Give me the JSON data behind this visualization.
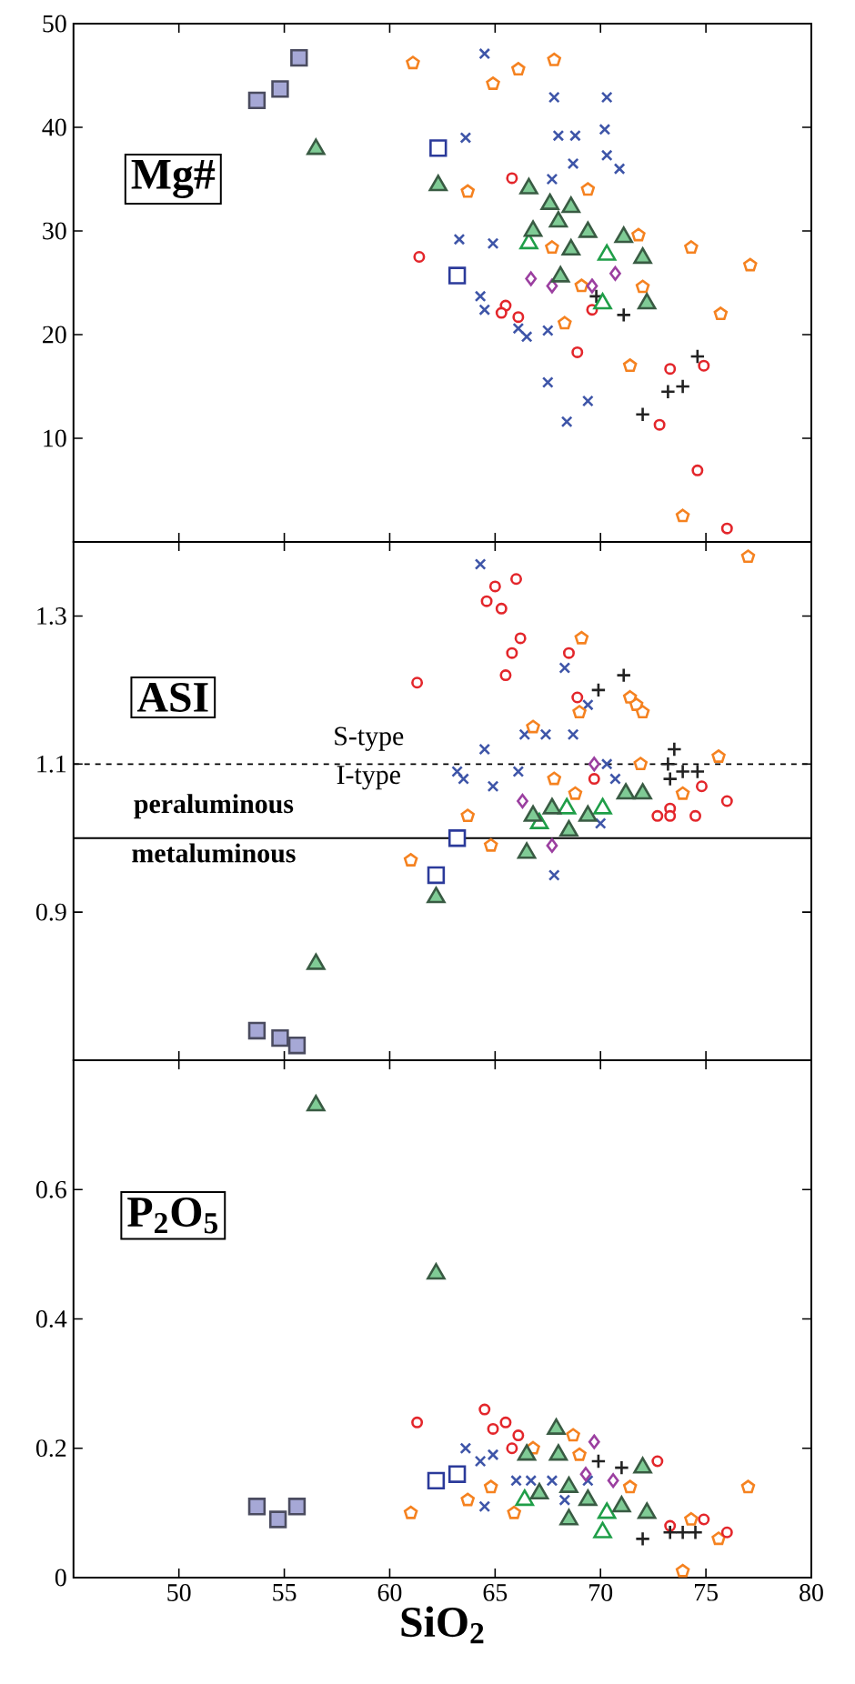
{
  "chart_data": [
    {
      "type": "scatter",
      "ylabel": "Mg#",
      "xlim": [
        45,
        80
      ],
      "ylim": [
        0,
        50
      ],
      "xticks": [
        50,
        55,
        60,
        65,
        70,
        75,
        80
      ],
      "yticks": [
        10,
        20,
        30,
        40,
        50
      ],
      "tick_labels": "y",
      "series": [
        {
          "marker": "square",
          "color": "#a6a8d6",
          "x": [
            53.7,
            54.8,
            55.7
          ],
          "values": [
            42.6,
            43.7,
            46.7
          ]
        },
        {
          "marker": "square",
          "color": "#2b3a9a",
          "x": [
            62.3,
            63.2
          ],
          "values": [
            38.0,
            25.7
          ]
        },
        {
          "marker": "cross",
          "color": "#3e55a8",
          "x": [
            64.5,
            67.8,
            70.3,
            63.6,
            68.0,
            68.8,
            70.2,
            68.7,
            70.3,
            70.9,
            67.7,
            63.3,
            64.9,
            64.3,
            64.5,
            66.1,
            66.5,
            67.5,
            67.5,
            69.4,
            68.4
          ],
          "values": [
            47.1,
            42.9,
            42.9,
            39.0,
            39.2,
            39.2,
            39.8,
            36.5,
            37.3,
            36.0,
            35.0,
            29.2,
            28.8,
            23.7,
            22.4,
            20.6,
            19.8,
            20.4,
            15.4,
            13.6,
            11.6
          ]
        },
        {
          "color": "#f58220",
          "x": [
            61.1,
            66.1,
            67.8,
            64.9,
            63.7,
            69.4,
            71.8,
            74.3,
            77.1,
            67.7,
            72.0,
            68.3,
            75.7,
            71.4,
            73.9,
            69.1
          ],
          "values": [
            46.2,
            45.6,
            46.5,
            44.2,
            33.8,
            34.0,
            29.6,
            28.4,
            26.7,
            28.4,
            24.6,
            21.1,
            22.0,
            17.0,
            2.5,
            24.7
          ]
        },
        {
          "marker": "circle",
          "color": "#e3262b",
          "x": [
            61.4,
            65.8,
            65.5,
            65.3,
            66.1,
            68.9,
            73.3,
            74.9,
            72.8,
            74.6,
            76.0,
            69.6
          ],
          "values": [
            27.5,
            35.1,
            22.8,
            22.1,
            21.7,
            18.3,
            16.7,
            17.0,
            11.3,
            6.9,
            1.3,
            22.4
          ]
        },
        {
          "marker": "diamond",
          "color": "#9b3fa0",
          "x": [
            66.7,
            68.3,
            70.7,
            69.6,
            67.7
          ],
          "values": [
            25.4,
            null,
            25.9,
            24.7,
            24.7
          ]
        },
        {
          "marker": "plus",
          "color": "#222222",
          "x": [
            69.8,
            71.1,
            72.0,
            73.2,
            73.9,
            74.6
          ],
          "values": [
            23.7,
            21.9,
            12.3,
            14.5,
            15.0,
            17.9
          ]
        },
        {
          "marker": "triangle",
          "color": "#1f9e48",
          "x": [
            66.6,
            67.6,
            70.3,
            70.1
          ],
          "values": [
            28.8,
            null,
            27.7,
            23.0
          ]
        },
        {
          "marker": "triangle",
          "color": "#7fcb95",
          "x": [
            56.5,
            62.3,
            66.6,
            67.6,
            68.6,
            68.0,
            69.4,
            66.8,
            71.1,
            68.6,
            72.0,
            68.1,
            72.2
          ],
          "values": [
            37.9,
            34.4,
            34.1,
            32.6,
            32.3,
            30.9,
            29.9,
            30.0,
            29.4,
            28.2,
            27.4,
            25.6,
            23.0
          ]
        }
      ]
    },
    {
      "type": "scatter",
      "ylabel": "ASI",
      "xlim": [
        45,
        80
      ],
      "ylim": [
        0.7,
        1.4
      ],
      "xticks": [
        50,
        55,
        60,
        65,
        70,
        75,
        80
      ],
      "yticks": [
        0.9,
        1.1,
        1.3
      ],
      "tick_labels": "y",
      "ref_lines": [
        {
          "axis": "y",
          "value": 1.1,
          "line_style": "dashed",
          "color": "#000000"
        },
        {
          "axis": "y",
          "value": 1.0,
          "color": "#000000"
        }
      ],
      "annotations": [
        "S-type",
        "I-type",
        "**peraluminous**",
        "**metaluminous**"
      ],
      "series": [
        {
          "marker": "square",
          "color": "#a6a8d6",
          "x": [
            53.7,
            54.8,
            55.6
          ],
          "values": [
            0.74,
            0.73,
            0.72
          ]
        },
        {
          "marker": "square",
          "color": "#2b3a9a",
          "x": [
            63.2,
            62.2
          ],
          "values": [
            1.0,
            0.95
          ]
        },
        {
          "marker": "cross",
          "color": "#3e55a8",
          "x": [
            64.3,
            68.3,
            69.4,
            66.4,
            67.4,
            68.7,
            64.5,
            63.2,
            63.5,
            64.9,
            66.1,
            70.3,
            70.7,
            67.8,
            70.0
          ],
          "values": [
            1.37,
            1.23,
            1.18,
            1.14,
            1.14,
            1.14,
            1.12,
            1.09,
            1.08,
            1.07,
            1.09,
            1.1,
            1.08,
            0.95,
            1.02
          ]
        },
        {
          "color": "#f58220",
          "x": [
            77.0,
            69.1,
            69.0,
            71.4,
            71.7,
            72.0,
            66.8,
            75.6,
            71.9,
            67.8,
            73.9,
            63.7,
            64.8,
            61.0,
            68.8
          ],
          "values": [
            1.38,
            1.27,
            1.17,
            1.19,
            1.18,
            1.17,
            1.15,
            1.11,
            1.1,
            1.08,
            1.06,
            1.03,
            0.99,
            0.97,
            1.06
          ]
        },
        {
          "marker": "circle",
          "color": "#e3262b",
          "x": [
            65.0,
            66.0,
            64.6,
            65.3,
            66.2,
            65.8,
            65.5,
            68.5,
            61.3,
            68.9,
            69.7,
            74.8,
            76.0,
            73.3,
            73.3,
            74.5,
            72.7
          ],
          "values": [
            1.34,
            1.35,
            1.32,
            1.31,
            1.27,
            1.25,
            1.22,
            1.25,
            1.21,
            1.19,
            1.08,
            1.07,
            1.05,
            1.04,
            1.03,
            1.03,
            1.03
          ]
        },
        {
          "marker": "diamond",
          "color": "#9b3fa0",
          "x": [
            69.7,
            67.7,
            66.3
          ],
          "values": [
            1.1,
            0.99,
            1.05
          ]
        },
        {
          "marker": "plus",
          "color": "#222222",
          "x": [
            69.9,
            71.1,
            73.5,
            73.2,
            73.9,
            74.6,
            73.3
          ],
          "values": [
            1.2,
            1.22,
            1.12,
            1.1,
            1.09,
            1.09,
            1.08
          ]
        },
        {
          "marker": "triangle",
          "color": "#1f9e48",
          "x": [
            67.1,
            70.1,
            68.4
          ],
          "values": [
            1.02,
            1.04,
            1.04
          ]
        },
        {
          "marker": "triangle",
          "color": "#7fcb95",
          "x": [
            56.5,
            62.2,
            66.5,
            68.5,
            69.4,
            71.2,
            72.0,
            67.7,
            66.8
          ],
          "values": [
            0.83,
            0.92,
            0.98,
            1.01,
            1.03,
            1.06,
            1.06,
            1.04,
            1.03
          ]
        }
      ]
    },
    {
      "type": "scatter",
      "ylabel": "P$_{2}$O$_{5}$",
      "xlabel": "SiO$_{2}$",
      "xlim": [
        45,
        80
      ],
      "ylim": [
        0,
        0.8
      ],
      "xticks": [
        50,
        55,
        60,
        65,
        70,
        75,
        80
      ],
      "yticks": [
        0,
        0.2,
        0.4,
        0.6
      ],
      "series": [
        {
          "marker": "square",
          "color": "#a6a8d6",
          "x": [
            53.7,
            54.7,
            55.6
          ],
          "values": [
            0.11,
            0.09,
            0.11
          ]
        },
        {
          "marker": "square",
          "color": "#2b3a9a",
          "x": [
            62.2,
            63.2
          ],
          "values": [
            0.15,
            0.16
          ]
        },
        {
          "marker": "cross",
          "color": "#3e55a8",
          "x": [
            63.6,
            64.3,
            64.9,
            64.5,
            66.0,
            67.7,
            69.4,
            68.3,
            66.7
          ],
          "values": [
            0.2,
            0.18,
            0.19,
            0.11,
            0.15,
            0.15,
            0.15,
            0.12,
            0.15
          ]
        },
        {
          "color": "#f58220",
          "x": [
            61.0,
            63.7,
            64.8,
            66.8,
            68.7,
            69.0,
            71.4,
            77.0,
            74.3,
            75.6,
            73.9,
            65.9
          ],
          "values": [
            0.1,
            0.12,
            0.14,
            0.2,
            0.22,
            0.19,
            0.14,
            0.14,
            0.09,
            0.06,
            0.01,
            0.1
          ]
        },
        {
          "marker": "circle",
          "color": "#e3262b",
          "x": [
            61.3,
            64.5,
            64.9,
            65.5,
            66.1,
            65.8,
            72.7,
            74.9,
            76.0,
            73.3
          ],
          "values": [
            0.24,
            0.26,
            0.23,
            0.24,
            0.22,
            0.2,
            0.18,
            0.09,
            0.07,
            0.08
          ]
        },
        {
          "marker": "diamond",
          "color": "#9b3fa0",
          "x": [
            69.7,
            70.6,
            69.3
          ],
          "values": [
            0.21,
            0.15,
            0.16
          ]
        },
        {
          "marker": "plus",
          "color": "#222222",
          "x": [
            69.9,
            71.0,
            72.0,
            73.3,
            73.9,
            74.5
          ],
          "values": [
            0.18,
            0.17,
            0.06,
            0.07,
            0.07,
            0.07
          ]
        },
        {
          "marker": "triangle",
          "color": "#1f9e48",
          "x": [
            66.4,
            67.4,
            70.1,
            70.3
          ],
          "values": [
            0.12,
            null,
            0.07,
            0.1
          ]
        },
        {
          "marker": "triangle",
          "color": "#7fcb95",
          "x": [
            56.5,
            62.2,
            67.9,
            66.5,
            68.0,
            72.0,
            68.5,
            69.4,
            71.0,
            72.2,
            68.5,
            67.1
          ],
          "values": [
            0.73,
            0.47,
            0.23,
            0.19,
            0.19,
            0.17,
            0.14,
            0.12,
            0.11,
            0.1,
            0.09,
            0.13
          ]
        }
      ]
    }
  ]
}
